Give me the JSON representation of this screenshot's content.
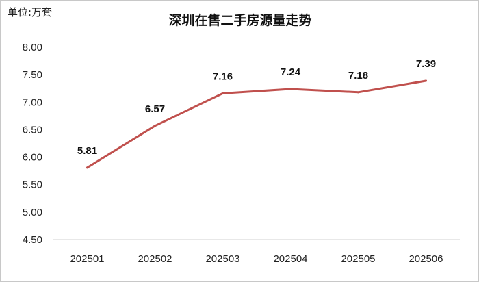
{
  "chart_data": {
    "type": "line",
    "title": "深圳在售二手房源量走势",
    "unit_label": "单位:万套",
    "xlabel": "",
    "ylabel": "",
    "categories": [
      "202501",
      "202502",
      "202503",
      "202504",
      "202505",
      "202506"
    ],
    "series": [
      {
        "values": [
          5.81,
          6.57,
          7.16,
          7.24,
          7.18,
          7.39
        ],
        "color": "#c0504d"
      }
    ],
    "data_labels": [
      "5.81",
      "6.57",
      "7.16",
      "7.24",
      "7.18",
      "7.39"
    ],
    "ylim": [
      4.5,
      8.0
    ],
    "yticks": [
      "4.50",
      "5.00",
      "5.50",
      "6.00",
      "6.50",
      "7.00",
      "7.50",
      "8.00"
    ],
    "grid": false,
    "legend": "none"
  }
}
